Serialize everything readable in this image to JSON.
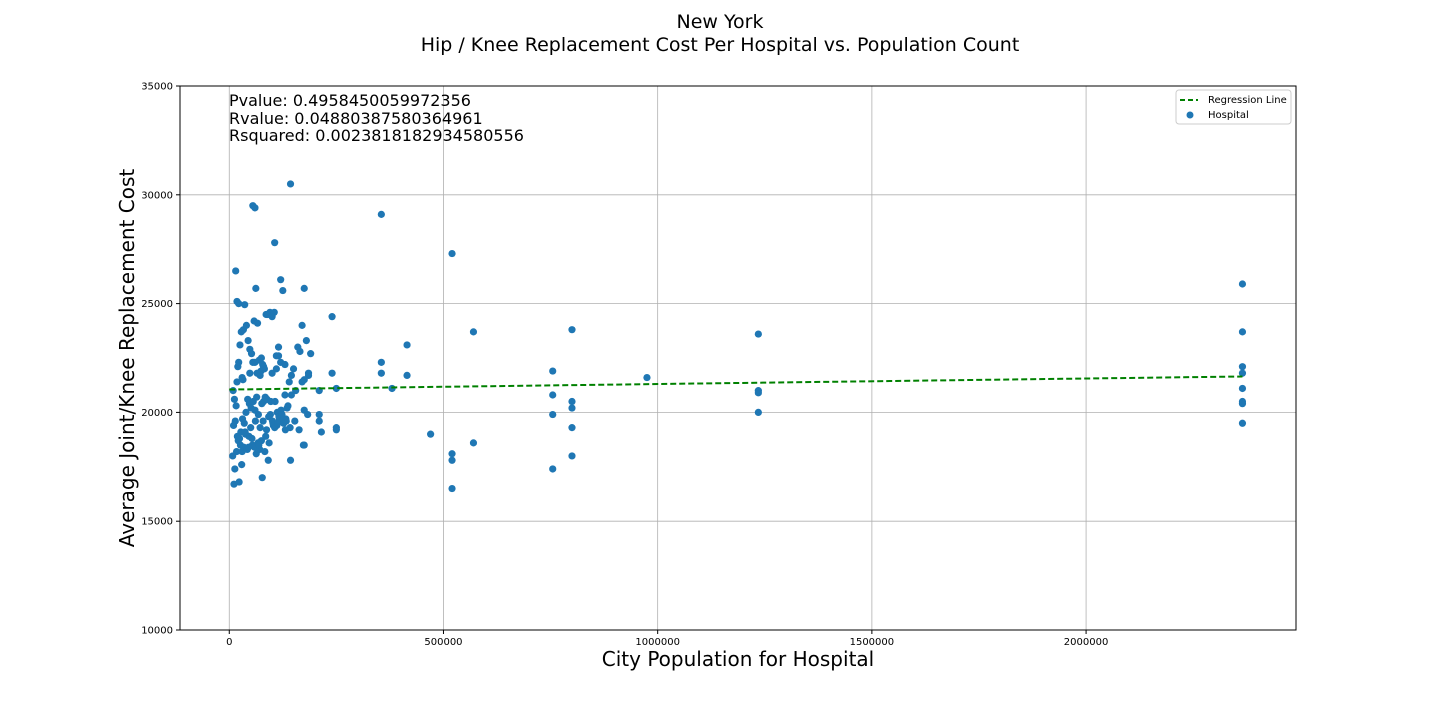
{
  "chart_data": {
    "type": "scatter",
    "title": "New York",
    "subtitle": "Hip / Knee Replacement Cost Per Hospital vs. Population Count",
    "xlabel": "City Population for Hospital",
    "ylabel": "Average Joint/Knee Replacement Cost",
    "xlim": [
      -115000,
      2490000
    ],
    "ylim": [
      10000,
      35000
    ],
    "xticks": [
      0,
      500000,
      1000000,
      1500000,
      2000000
    ],
    "xtick_labels": [
      "0",
      "500000",
      "1000000",
      "1500000",
      "2000000"
    ],
    "yticks": [
      10000,
      15000,
      20000,
      25000,
      30000,
      35000
    ],
    "ytick_labels": [
      "10000",
      "15000",
      "20000",
      "25000",
      "30000",
      "35000"
    ],
    "grid": true,
    "legend_position": "top-right",
    "annotations": [
      "Pvalue: 0.4958450059972356",
      "Rvalue: 0.04880387580364961",
      "Rsquared: 0.002381818293458055​6"
    ],
    "series": [
      {
        "name": "Regression Line",
        "kind": "line",
        "style": "dashed",
        "color": "#008000",
        "x": [
          0,
          2365000
        ],
        "y": [
          21050,
          21650
        ]
      },
      {
        "name": "Hospital",
        "kind": "scatter",
        "color": "#1f77b4",
        "x": [
          15000,
          18000,
          22000,
          9000,
          12000,
          16000,
          20000,
          25000,
          28000,
          33000,
          36000,
          40000,
          44000,
          48000,
          52000,
          55000,
          58000,
          62000,
          66000,
          70000,
          74000,
          78000,
          82000,
          86000,
          90000,
          95000,
          100000,
          105000,
          110000,
          115000,
          120000,
          125000,
          130000,
          135000,
          140000,
          145000,
          150000,
          155000,
          160000,
          170000,
          175000,
          180000,
          185000,
          190000,
          10000,
          14000,
          19000,
          24000,
          27000,
          31000,
          35000,
          39000,
          43000,
          47000,
          51000,
          56000,
          60000,
          64000,
          68000,
          72000,
          76000,
          80000,
          84000,
          88000,
          92000,
          97000,
          102000,
          107000,
          112000,
          117000,
          122000,
          127000,
          132000,
          137000,
          142000,
          8000,
          13000,
          17000,
          21000,
          26000,
          30000,
          34000,
          38000,
          42000,
          46000,
          50000,
          54000,
          59000,
          63000,
          67000,
          71000,
          75000,
          79000,
          83000,
          87000,
          91000,
          96000,
          101000,
          106000,
          111000,
          116000,
          121000,
          126000,
          131000,
          11000,
          23000,
          29000,
          37000,
          45000,
          53000,
          61000,
          69000,
          77000,
          85000,
          93000,
          103000,
          113000,
          123000,
          133000,
          143000,
          153000,
          163000,
          173000,
          183000,
          55000,
          60000,
          106000,
          143000,
          355000,
          520000,
          18000,
          22000,
          32000,
          48000,
          65000,
          72000,
          120000,
          130000,
          175000,
          240000,
          60000,
          80000,
          100000,
          110000,
          115000,
          165000,
          185000,
          210000,
          355000,
          415000,
          570000,
          240000,
          250000,
          380000,
          355000,
          415000,
          250000,
          250000,
          175000,
          175000,
          210000,
          210000,
          215000,
          145000,
          75000,
          30000,
          170000,
          470000,
          520000,
          520000,
          520000,
          570000,
          755000,
          755000,
          755000,
          755000,
          800000,
          800000,
          800000,
          800000,
          800000,
          975000,
          1235000,
          1235000,
          1235000,
          1235000,
          2365000,
          2365000,
          2365000,
          2365000,
          2365000,
          2365000,
          2365000,
          2365000
        ],
        "y": [
          26500,
          25100,
          25000,
          21000,
          20600,
          20300,
          22100,
          23100,
          23700,
          23800,
          24950,
          24000,
          23300,
          22900,
          22700,
          22300,
          24200,
          25700,
          24100,
          22400,
          21900,
          22200,
          22000,
          24500,
          24500,
          24600,
          24400,
          24600,
          22600,
          22600,
          26100,
          25600,
          20800,
          20200,
          21400,
          20800,
          22000,
          21000,
          23000,
          21400,
          20100,
          23300,
          21700,
          22700,
          19400,
          19600,
          18900,
          18800,
          19100,
          19700,
          19500,
          20000,
          20600,
          20400,
          20200,
          20500,
          20100,
          20700,
          19900,
          19300,
          20400,
          20500,
          20700,
          20600,
          19800,
          20500,
          19500,
          20500,
          20000,
          19700,
          19900,
          19500,
          19700,
          20300,
          19300,
          18000,
          17400,
          18200,
          18700,
          18500,
          18200,
          18400,
          19000,
          18300,
          18900,
          19300,
          18500,
          18400,
          18100,
          18600,
          18300,
          18700,
          19600,
          18200,
          19200,
          17800,
          19900,
          19600,
          19300,
          19400,
          19800,
          20100,
          19700,
          19200,
          16700,
          16800,
          17600,
          19100,
          18400,
          18800,
          19600,
          18500,
          17000,
          18900,
          18600,
          19400,
          19500,
          19900,
          19600,
          17800,
          19600,
          19200,
          18500,
          19900,
          29500,
          29400,
          27800,
          30500,
          29100,
          27300,
          21400,
          22300,
          21500,
          21800,
          21800,
          21700,
          22300,
          22200,
          25700,
          24400,
          22300,
          22100,
          21800,
          22000,
          23000,
          22800,
          21800,
          21000,
          22300,
          21700,
          23700,
          21800,
          21100,
          21100,
          21800,
          23100,
          19300,
          19200,
          18500,
          21500,
          19900,
          19600,
          19100,
          21700,
          22500,
          21600,
          24000,
          19000,
          18100,
          17800,
          16500,
          18600,
          21900,
          20800,
          19900,
          17400,
          23800,
          20200,
          20500,
          19300,
          18000,
          21600,
          23600,
          21000,
          20900,
          20000,
          25900,
          23700,
          22100,
          21800,
          21100,
          20500,
          20400,
          19500
        ]
      }
    ]
  }
}
